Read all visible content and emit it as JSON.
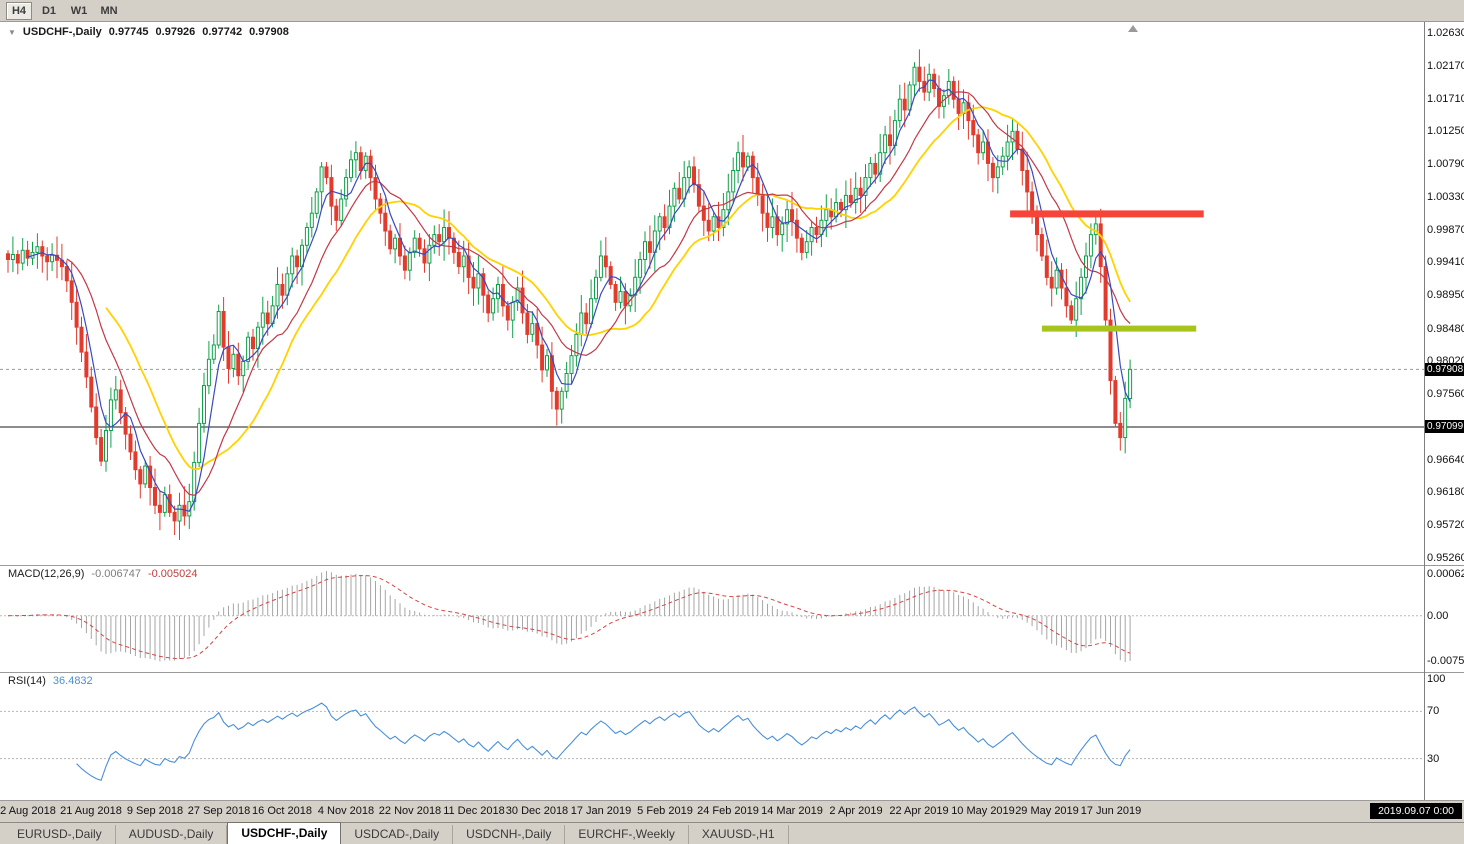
{
  "toolbar": {
    "timeframes": [
      "H4",
      "D1",
      "W1",
      "MN"
    ],
    "active": "H4"
  },
  "chart": {
    "symbol": "USDCHF-,Daily",
    "ohlc": {
      "open": "0.97745",
      "high": "0.97926",
      "low": "0.97742",
      "close": "0.97908"
    },
    "current_price": "0.97908",
    "support_price": "0.97099",
    "price_axis": [
      "1.02630",
      "1.02170",
      "1.01710",
      "1.01250",
      "1.00790",
      "1.00330",
      "0.99870",
      "0.99410",
      "0.98950",
      "0.98480",
      "0.98020",
      "0.97560",
      "0.96640",
      "0.96180",
      "0.95720",
      "0.95260"
    ]
  },
  "macd": {
    "name": "MACD(12,26,9)",
    "value_main": "-0.006747",
    "value_signal": "-0.005024",
    "axis": [
      "0.0006282",
      "0.00",
      "-0.007542"
    ]
  },
  "rsi": {
    "name": "RSI(14)",
    "value": "36.4832",
    "axis": [
      "100",
      "70",
      "30"
    ]
  },
  "time_axis": {
    "cursor_badge": "2019.09.07 0:00"
  },
  "tabs": {
    "items": [
      "EURUSD-,Daily",
      "AUDUSD-,Daily",
      "USDCHF-,Daily",
      "USDCAD-,Daily",
      "USDCNH-,Daily",
      "EURCHF-,Weekly",
      "XAUUSD-,H1"
    ],
    "active_index": 2
  },
  "chart_data": {
    "type": "candlestick",
    "symbol": "USDCHF",
    "timeframe": "Daily",
    "ylim": [
      0.9526,
      1.0263
    ],
    "x_first_label_index": 4,
    "x_label_step": 13,
    "x_labels": [
      "2 Aug 2018",
      "21 Aug 2018",
      "9 Sep 2018",
      "27 Sep 2018",
      "16 Oct 2018",
      "4 Nov 2018",
      "22 Nov 2018",
      "11 Dec 2018",
      "30 Dec 2018",
      "17 Jan 2019",
      "5 Feb 2019",
      "24 Feb 2019",
      "14 Mar 2019",
      "2 Apr 2019",
      "22 Apr 2019",
      "10 May 2019",
      "29 May 2019",
      "17 Jun 2019"
    ],
    "closes": [
      0.9945,
      0.9952,
      0.994,
      0.9958,
      0.9947,
      0.9955,
      0.9963,
      0.995,
      0.9942,
      0.9951,
      0.9944,
      0.9935,
      0.9915,
      0.9885,
      0.985,
      0.9815,
      0.978,
      0.9738,
      0.9695,
      0.9662,
      0.9705,
      0.9748,
      0.9762,
      0.973,
      0.97,
      0.9675,
      0.965,
      0.963,
      0.9655,
      0.9625,
      0.96,
      0.959,
      0.9615,
      0.959,
      0.9578,
      0.96,
      0.9585,
      0.9605,
      0.966,
      0.9715,
      0.9768,
      0.9805,
      0.9825,
      0.9872,
      0.9822,
      0.9792,
      0.9812,
      0.9782,
      0.9802,
      0.9836,
      0.982,
      0.985,
      0.987,
      0.9855,
      0.988,
      0.991,
      0.9895,
      0.9925,
      0.995,
      0.9935,
      0.9965,
      0.999,
      1.001,
      1.004,
      1.0075,
      1.006,
      1.002,
      1.0,
      1.003,
      1.006,
      1.0085,
      1.0095,
      1.007,
      1.009,
      1.006,
      1.003,
      1.001,
      0.9985,
      0.996,
      0.9975,
      0.995,
      0.993,
      0.9955,
      0.9975,
      0.996,
      0.994,
      0.9965,
      0.998,
      0.997,
      0.999,
      0.9975,
      0.9955,
      0.9935,
      0.995,
      0.992,
      0.9905,
      0.9925,
      0.9895,
      0.987,
      0.989,
      0.991,
      0.988,
      0.986,
      0.9885,
      0.9905,
      0.987,
      0.984,
      0.9855,
      0.9825,
      0.979,
      0.981,
      0.976,
      0.9735,
      0.976,
      0.9785,
      0.981,
      0.984,
      0.987,
      0.9855,
      0.989,
      0.992,
      0.995,
      0.9935,
      0.991,
      0.9885,
      0.99,
      0.988,
      0.9895,
      0.992,
      0.9945,
      0.997,
      0.9955,
      0.9985,
      1.0005,
      0.999,
      1.002,
      1.0045,
      1.003,
      1.006,
      1.0075,
      1.005,
      1.002,
      1.0,
      0.9985,
      1.0005,
      0.999,
      1.0015,
      1.004,
      1.007,
      1.0095,
      1.0075,
      1.009,
      1.006,
      1.0035,
      1.001,
      0.999,
      1.0005,
      0.998,
      0.9995,
      1.0015,
      1.0,
      0.9975,
      0.9955,
      0.997,
      0.999,
      0.998,
      1.0,
      1.0015,
      1.0005,
      1.0025,
      1.0015,
      1.0035,
      1.0025,
      1.0045,
      1.0035,
      1.006,
      1.008,
      1.0065,
      1.0095,
      1.012,
      1.0105,
      1.014,
      1.017,
      1.0155,
      1.019,
      1.0215,
      1.0195,
      1.018,
      1.0205,
      1.0185,
      1.016,
      1.0175,
      1.0195,
      1.017,
      1.015,
      1.0165,
      1.014,
      1.012,
      1.0095,
      1.011,
      1.008,
      1.006,
      1.0075,
      1.009,
      1.011,
      1.0125,
      1.01,
      1.007,
      1.004,
      1.001,
      0.998,
      0.995,
      0.992,
      0.9905,
      0.993,
      0.9905,
      0.988,
      0.986,
      0.989,
      0.992,
      0.995,
      0.998,
      0.9995,
      0.9935,
      0.986,
      0.9775,
      0.9715,
      0.9695,
      0.975,
      0.97908
    ],
    "candle_colors": {
      "up": "#0fa04a",
      "down": "#e23a2c"
    },
    "overlays": [
      {
        "name": "ma-slow",
        "period": 21,
        "color": "#ffd200"
      },
      {
        "name": "ma-mid",
        "period": 13,
        "color": "#c23848"
      },
      {
        "name": "ma-fast",
        "period": 5,
        "color": "#3a49c0"
      }
    ],
    "indicators": [
      {
        "name": "MACD",
        "params": [
          12,
          26,
          9
        ],
        "current": [
          -0.006747,
          -0.005024
        ],
        "colors": {
          "histogram": "#a6a6a6",
          "signal": "#d64545"
        }
      },
      {
        "name": "RSI",
        "params": [
          14
        ],
        "current": 36.4832,
        "levels": [
          70,
          30
        ],
        "color": "#4a90d9"
      }
    ],
    "hlines": [
      {
        "price": 0.97099,
        "style": "solid",
        "color": "#1a1a1a",
        "label": "0.97099"
      },
      {
        "price": 0.97908,
        "style": "dashed",
        "color": "#9a9a9a",
        "label": "0.97908"
      }
    ],
    "objects": [
      {
        "type": "horizontal-segment",
        "role": "resistance",
        "price": 1.0009,
        "start_index": 204.5,
        "end_index": 244,
        "thickness": 7,
        "color": "#f64438"
      },
      {
        "type": "horizontal-segment",
        "role": "support",
        "price": 0.9848,
        "start_index": 211,
        "end_index": 242.5,
        "thickness": 6,
        "color": "#a7c41c"
      }
    ]
  }
}
